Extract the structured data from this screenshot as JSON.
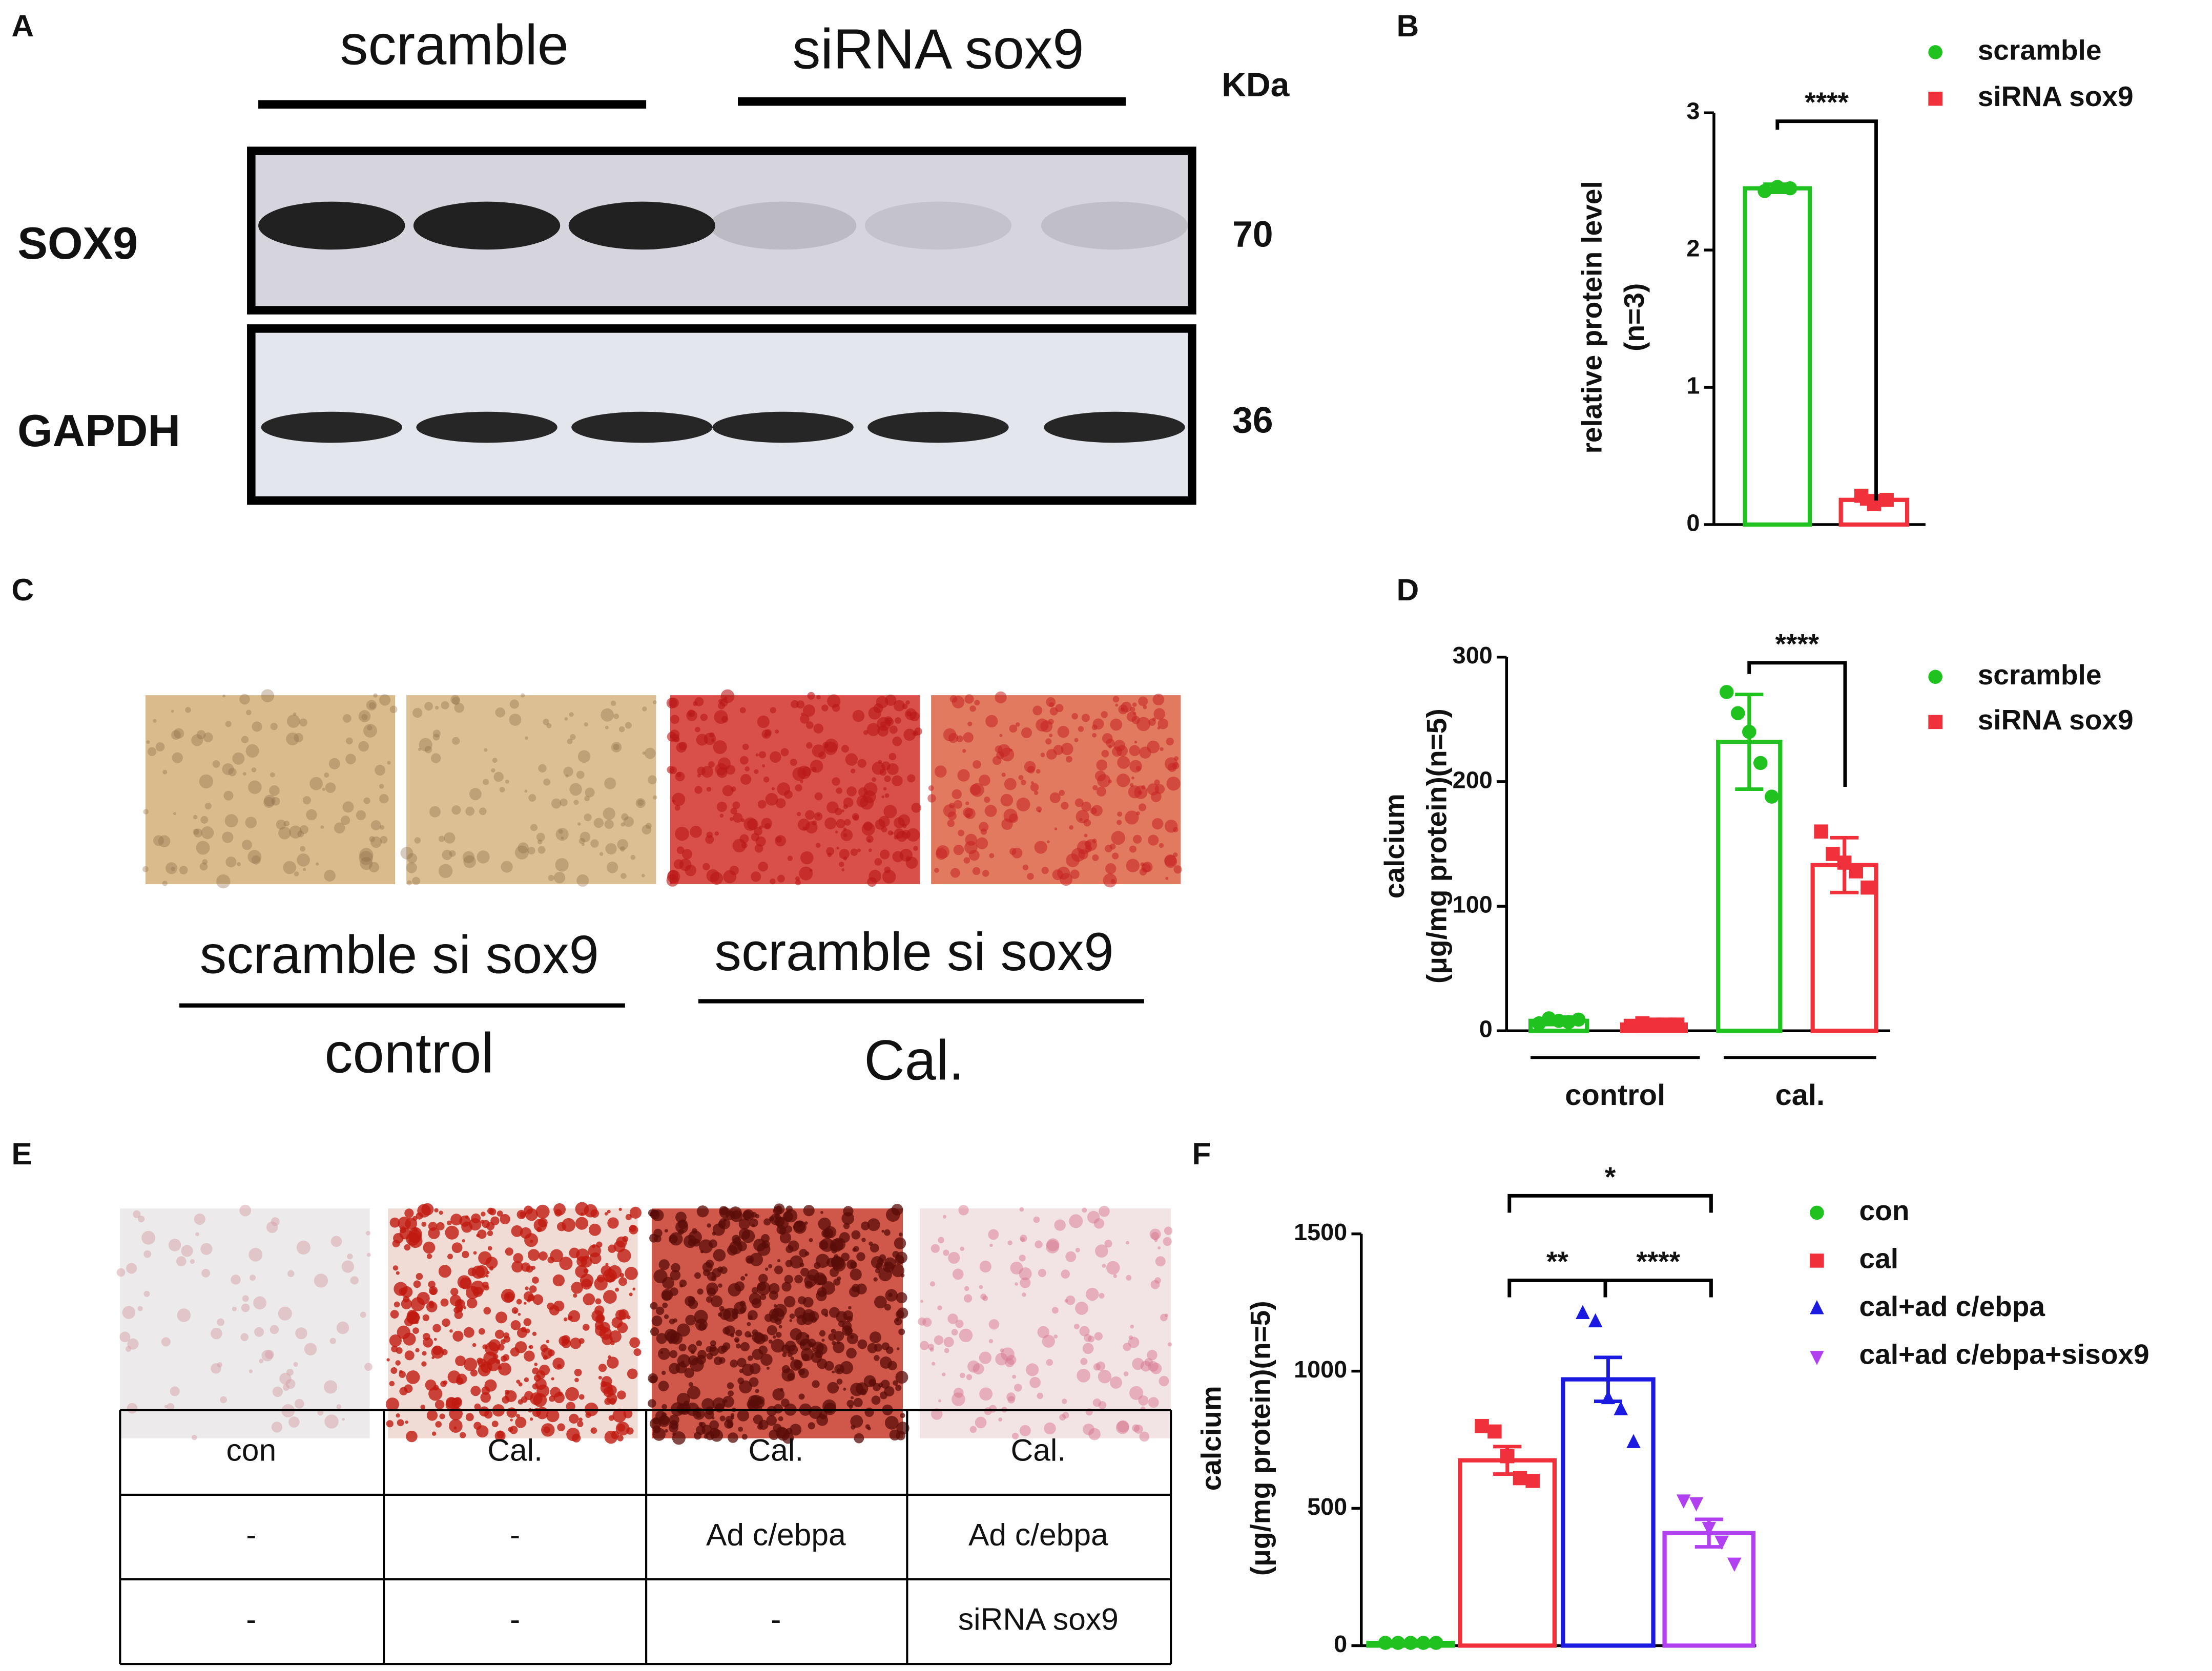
{
  "panels": {
    "labels": [
      "A",
      "B",
      "C",
      "D",
      "E",
      "F"
    ]
  },
  "blot": {
    "groups": [
      "scramble",
      "siRNA sox9"
    ],
    "unit": "KDa",
    "proteins": [
      {
        "name": "SOX9",
        "kda": 70
      },
      {
        "name": "GAPDH",
        "kda": 36
      }
    ]
  },
  "staining": {
    "groups": [
      "scramble si sox9",
      "scramble si sox9"
    ],
    "conditions": [
      "control",
      "Cal."
    ]
  },
  "table": {
    "rows": [
      [
        "con",
        "Cal.",
        "Cal.",
        "Cal."
      ],
      [
        "-",
        "-",
        "Ad c/ebpa",
        "Ad c/ebpa"
      ],
      [
        "-",
        "-",
        "-",
        "siRNA sox9"
      ]
    ]
  },
  "chart_data": [
    {
      "type": "bar",
      "categories": [
        null
      ],
      "ylabel": [
        "relative protein level",
        "(n=3)"
      ],
      "ylim": [
        0,
        3
      ],
      "yticks": [
        0,
        1,
        2,
        3
      ],
      "series": [
        {
          "name": "scramble",
          "color": "#1fc21f",
          "marker": "circle",
          "values": [
            2.45
          ],
          "errors": [
            0.03
          ],
          "points": [
            [
              2.43,
              2.46,
              2.45
            ]
          ]
        },
        {
          "name": "siRNA sox9",
          "color": "#f0303a",
          "marker": "square",
          "values": [
            0.18
          ],
          "errors": [
            0.03
          ],
          "points": [
            [
              0.21,
              0.15,
              0.18
            ]
          ]
        }
      ],
      "annotations": [
        "****"
      ],
      "legend": "upper right"
    },
    {
      "type": "bar",
      "categories": [
        "control",
        "cal."
      ],
      "ylabel": [
        "calcium",
        "(μg/mg protein)(n=5)"
      ],
      "ylim": [
        0,
        300
      ],
      "yticks": [
        0,
        100,
        200,
        300
      ],
      "series": [
        {
          "name": "scramble",
          "color": "#1fc21f",
          "marker": "circle",
          "values": [
            8,
            232
          ],
          "errors": [
            3,
            38
          ],
          "points": [
            [
              6,
              10,
              8,
              7,
              9
            ],
            [
              272,
              255,
              240,
              215,
              188
            ]
          ]
        },
        {
          "name": "siRNA sox9",
          "color": "#f0303a",
          "marker": "square",
          "values": [
            5,
            133
          ],
          "errors": [
            2,
            22
          ],
          "points": [
            [
              4,
              6,
              5,
              5,
              5
            ],
            [
              160,
              142,
              135,
              128,
              115
            ]
          ]
        }
      ],
      "annotations": [
        "****"
      ],
      "legend": "upper right"
    },
    {
      "type": "bar",
      "categories": [
        null
      ],
      "ylabel": [
        "calcium",
        "(μg/mg protein)(n=5)"
      ],
      "ylim": [
        0,
        1500
      ],
      "yticks": [
        0,
        500,
        1000,
        1500
      ],
      "series": [
        {
          "name": "con",
          "color": "#1fc21f",
          "marker": "circle",
          "values": [
            10
          ],
          "errors": [
            2
          ],
          "points": [
            [
              10,
              10,
              10,
              10,
              10
            ]
          ]
        },
        {
          "name": "cal",
          "color": "#f0303a",
          "marker": "square",
          "values": [
            675
          ],
          "errors": [
            50
          ],
          "points": [
            [
              800,
              780,
              690,
              610,
              600
            ]
          ]
        },
        {
          "name": "cal+ad c/ebpa",
          "color": "#1a1ae0",
          "marker": "triangle",
          "values": [
            970
          ],
          "errors": [
            80
          ],
          "points": [
            [
              1210,
              1180,
              900,
              860,
              740
            ]
          ]
        },
        {
          "name": "cal+ad c/ebpa+sisox9",
          "color": "#b040f0",
          "marker": "triangle-down",
          "values": [
            410
          ],
          "errors": [
            50
          ],
          "points": [
            [
              530,
              520,
              430,
              380,
              300
            ]
          ]
        }
      ],
      "annotations": [
        "*",
        "**",
        "****"
      ],
      "legend": "upper right"
    }
  ]
}
